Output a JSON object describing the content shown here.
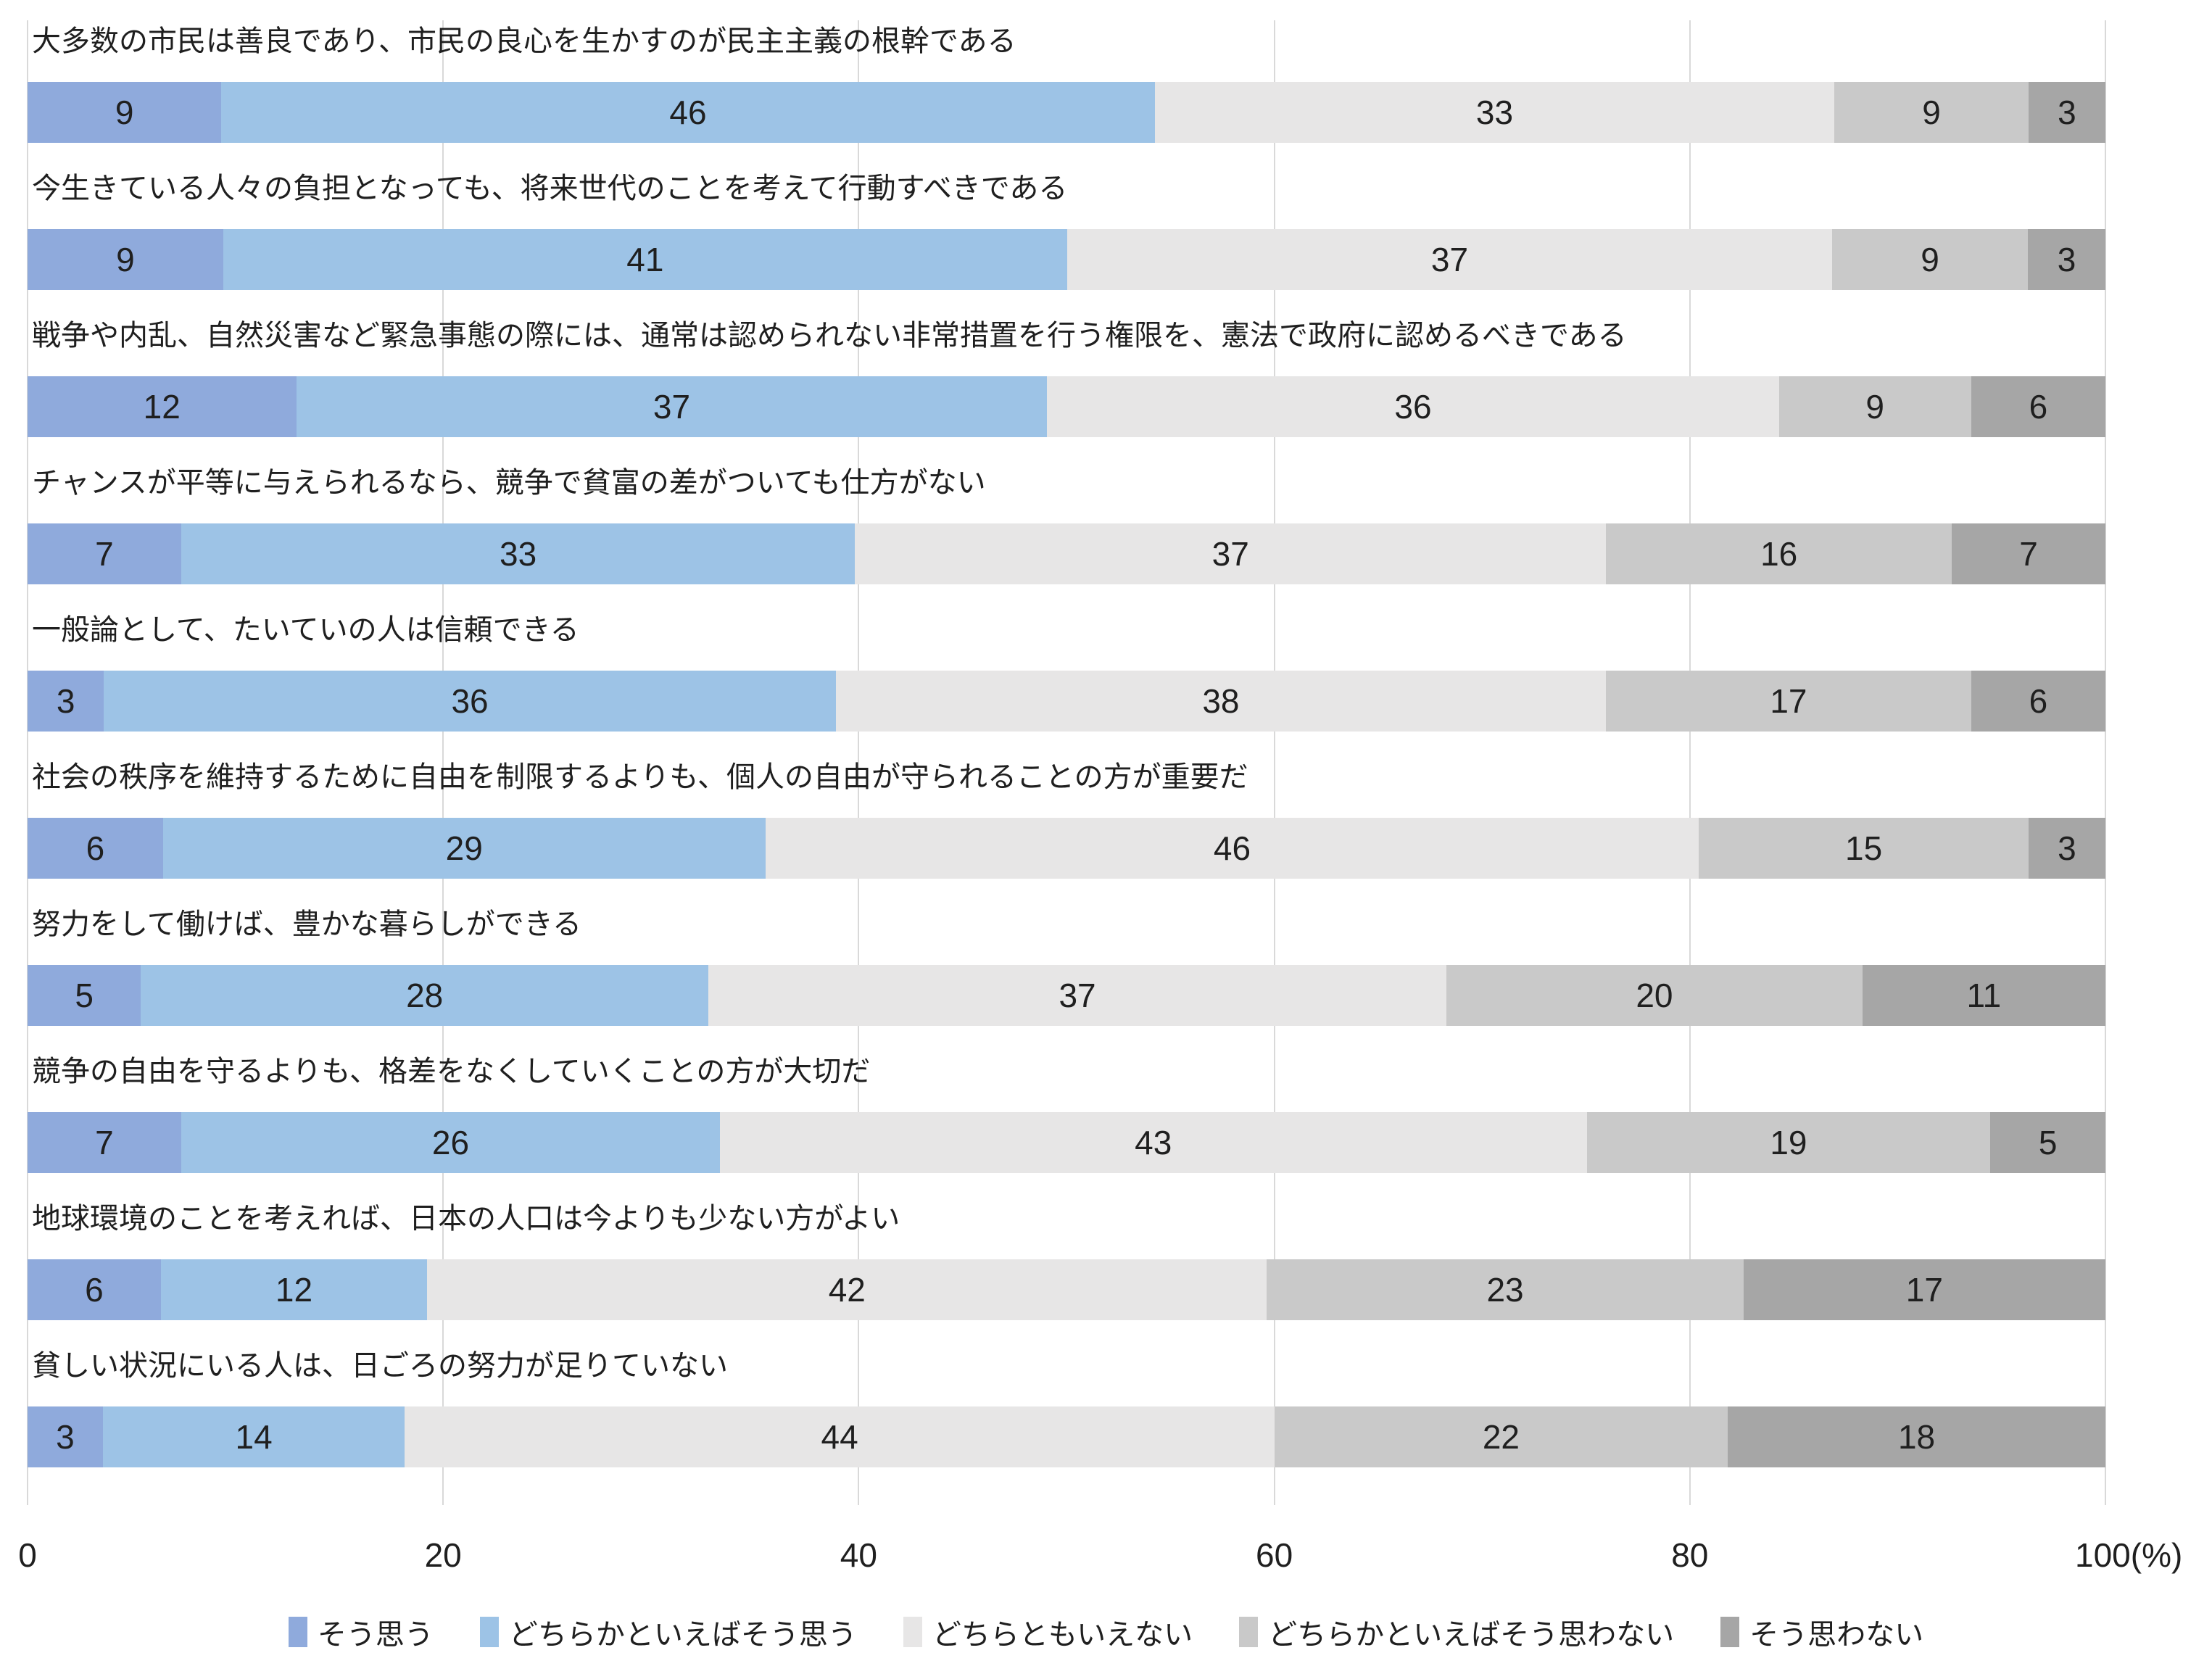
{
  "page": {
    "background": "#FFFFFF"
  },
  "chart_data": {
    "type": "bar",
    "stacked": true,
    "orientation": "horizontal",
    "title": "",
    "xlabel": "",
    "ylabel": "",
    "xlim": [
      0,
      100
    ],
    "x_ticks": [
      "0",
      "20",
      "40",
      "60",
      "80",
      "100(%)"
    ],
    "grid": "vertical",
    "gridline_color": "#D9D9D9",
    "text_color": "#1F1F1F",
    "legend_position": "bottom",
    "categories": [
      "大多数の市民は善良であり、市民の良心を生かすのが民主主義の根幹である",
      "今生きている人々の負担となっても、将来世代のことを考えて行動すべきである",
      "戦争や内乱、自然災害など緊急事態の際には、通常は認められない非常措置を行う権限を、憲法で政府に認めるべきである",
      "チャンスが平等に与えられるなら、競争で貧富の差がついても仕方がない",
      "一般論として、たいていの人は信頼できる",
      "社会の秩序を維持するために自由を制限するよりも、個人の自由が守られることの方が重要だ",
      "努力をして働けば、豊かな暮らしができる",
      "競争の自由を守るよりも、格差をなくしていくことの方が大切だ",
      "地球環境のことを考えれば、日本の人口は今よりも少ない方がよい",
      "貧しい状況にいる人は、日ごろの努力が足りていない"
    ],
    "series": [
      {
        "name": "そう思う",
        "color": "#8FAADC",
        "values": [
          9,
          9,
          12,
          7,
          3,
          6,
          5,
          7,
          6,
          3
        ]
      },
      {
        "name": "どちらかといえばそう思う",
        "color": "#9DC3E6",
        "values": [
          46,
          41,
          37,
          33,
          36,
          29,
          28,
          26,
          12,
          14
        ]
      },
      {
        "name": "どちらともいえない",
        "color": "#E7E6E6",
        "values": [
          33,
          37,
          36,
          37,
          38,
          46,
          37,
          43,
          42,
          44
        ]
      },
      {
        "name": "どちらかといえばそう思わない",
        "color": "#C9C9C9",
        "values": [
          9,
          9,
          9,
          16,
          17,
          15,
          20,
          19,
          23,
          22
        ]
      },
      {
        "name": "そう思わない",
        "color": "#A6A6A6",
        "values": [
          3,
          3,
          6,
          7,
          6,
          3,
          11,
          5,
          17,
          18
        ]
      }
    ]
  }
}
